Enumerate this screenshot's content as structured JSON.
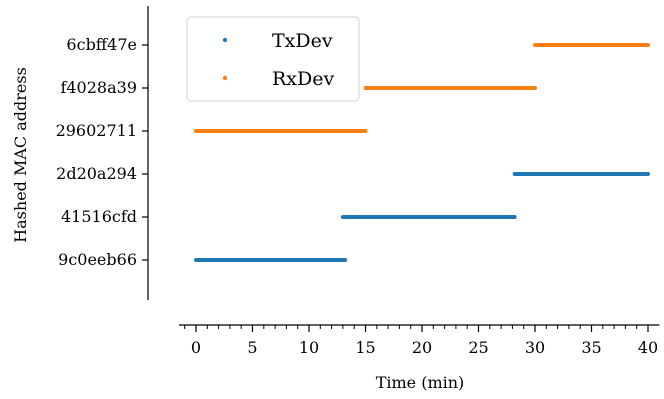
{
  "chart_data": {
    "type": "scatter",
    "xlabel": "Time (min)",
    "ylabel": "Hashed MAC address",
    "xlim": [
      -1.5,
      41
    ],
    "x_ticks": [
      0,
      5,
      10,
      15,
      20,
      25,
      30,
      35,
      40
    ],
    "x_minor_step": 1,
    "categories": [
      "9c0eeb66",
      "41516cfd",
      "2d20a294",
      "29602711",
      "f4028a39",
      "6cbff47e"
    ],
    "series": [
      {
        "name": "TxDev",
        "color": "#1f77b4",
        "segments": [
          {
            "category": "9c0eeb66",
            "x_start": 0,
            "x_end": 13.2
          },
          {
            "category": "41516cfd",
            "x_start": 13.0,
            "x_end": 28.2
          },
          {
            "category": "2d20a294",
            "x_start": 28.2,
            "x_end": 40.0
          }
        ]
      },
      {
        "name": "RxDev",
        "color": "#ff7f0e",
        "segments": [
          {
            "category": "29602711",
            "x_start": 0,
            "x_end": 15.0
          },
          {
            "category": "f4028a39",
            "x_start": 15.0,
            "x_end": 30.0
          },
          {
            "category": "6cbff47e",
            "x_start": 30.0,
            "x_end": 40.0
          }
        ]
      }
    ],
    "legend": {
      "placement": "top-left",
      "entries": [
        "TxDev",
        "RxDev"
      ]
    },
    "grid": false
  }
}
